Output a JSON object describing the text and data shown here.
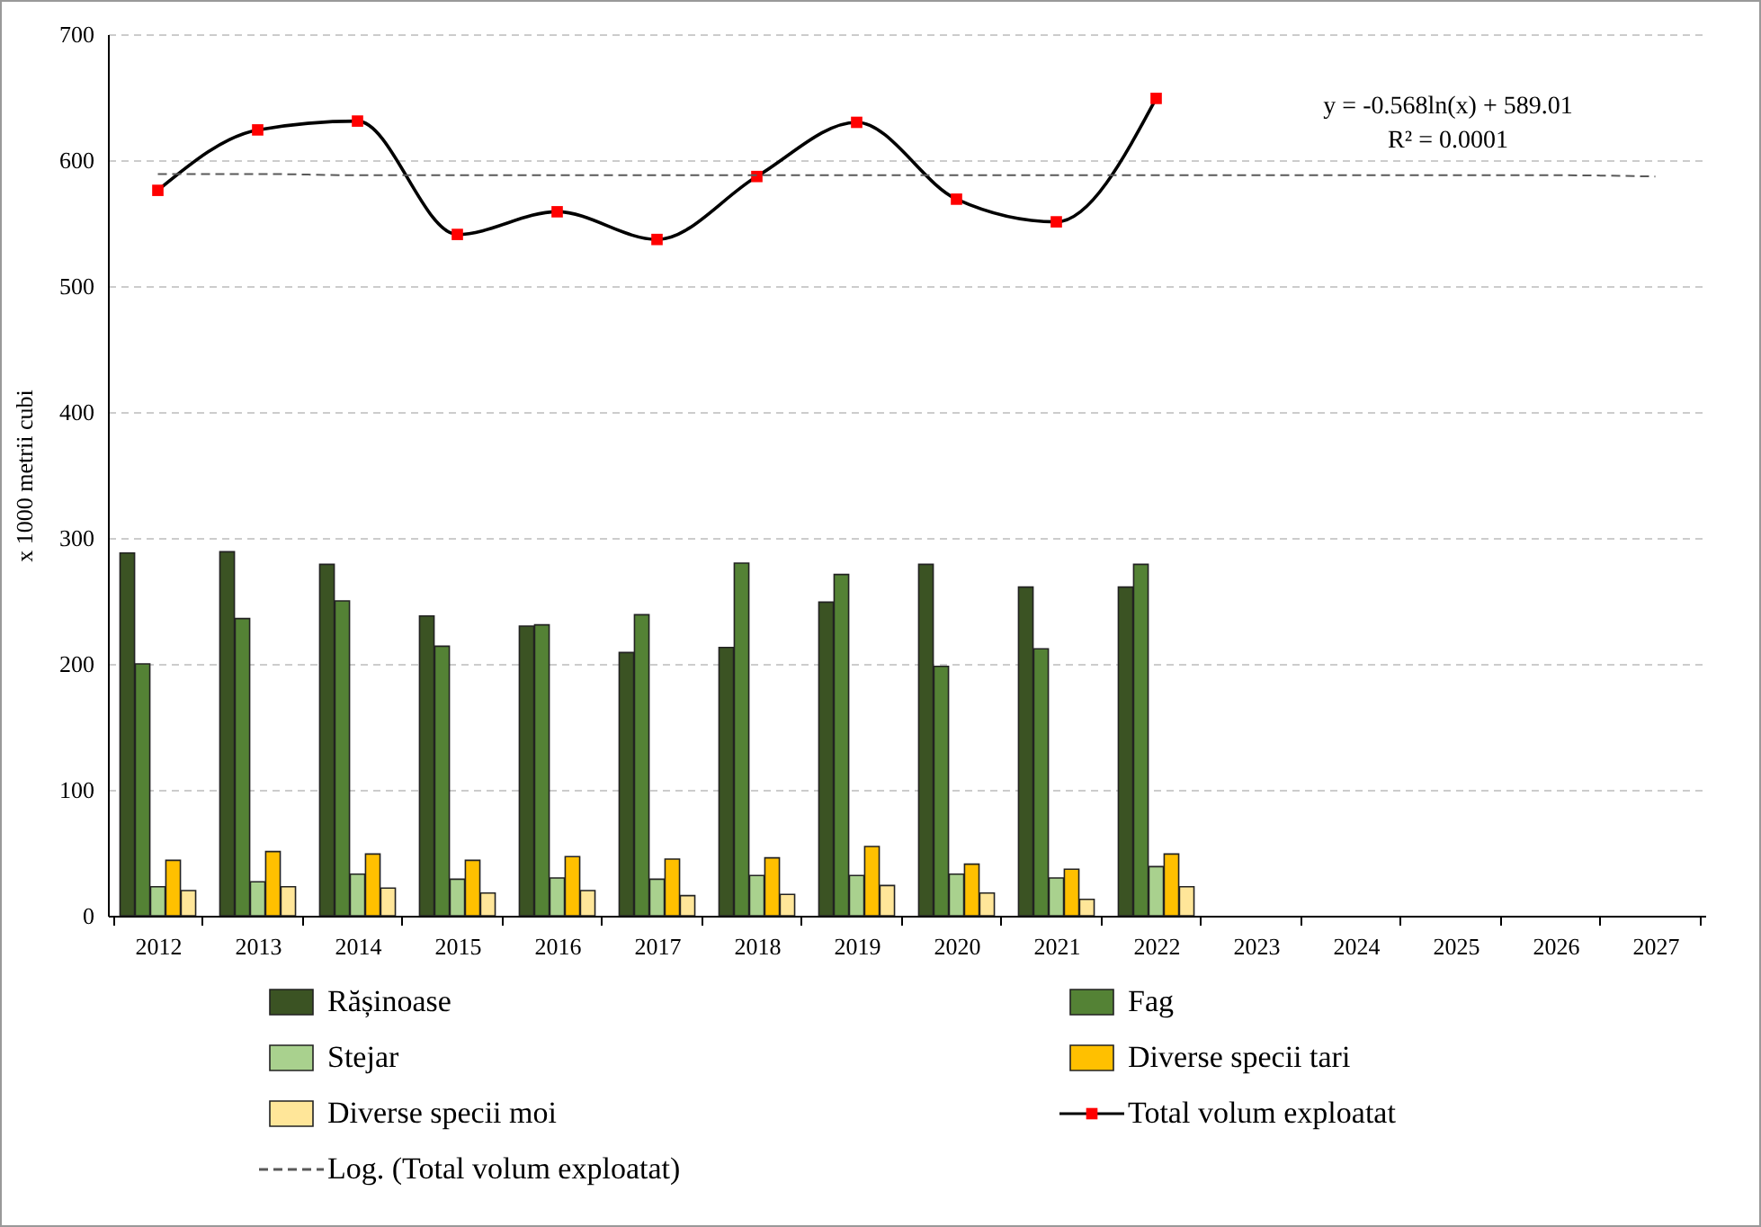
{
  "chart_data": {
    "type": "bar",
    "categories": [
      "2012",
      "2013",
      "2014",
      "2015",
      "2016",
      "2017",
      "2018",
      "2019",
      "2020",
      "2021",
      "2022",
      "2023",
      "2024",
      "2025",
      "2026",
      "2027"
    ],
    "ylabel": "x 1000 metrii cubi",
    "ylim": [
      0,
      700
    ],
    "yticks": [
      0,
      100,
      200,
      300,
      400,
      500,
      600,
      700
    ],
    "grid": "y",
    "legend": "bottom",
    "annotations": [
      "y = -0.568ln(x)  + 589.01",
      "R² = 0.0001"
    ],
    "series": [
      {
        "name": "Rășinoase",
        "color": "#3b5323",
        "values": [
          288,
          289,
          279,
          238,
          230,
          209,
          213,
          249,
          279,
          261,
          261,
          null,
          null,
          null,
          null,
          null
        ]
      },
      {
        "name": "Fag",
        "color": "#548235",
        "values": [
          200,
          236,
          250,
          214,
          231,
          239,
          280,
          271,
          198,
          212,
          279,
          null,
          null,
          null,
          null,
          null
        ]
      },
      {
        "name": "Stejar",
        "color": "#a9d18e",
        "values": [
          23,
          27,
          33,
          29,
          30,
          29,
          32,
          32,
          33,
          30,
          39,
          null,
          null,
          null,
          null,
          null
        ]
      },
      {
        "name": "Diverse specii tari",
        "color": "#ffc000",
        "values": [
          44,
          51,
          49,
          44,
          47,
          45,
          46,
          55,
          41,
          37,
          49,
          null,
          null,
          null,
          null,
          null
        ]
      },
      {
        "name": "Diverse specii moi",
        "color": "#ffe699",
        "values": [
          20,
          23,
          22,
          18,
          20,
          16,
          17,
          24,
          18,
          13,
          23,
          null,
          null,
          null,
          null,
          null
        ]
      },
      {
        "name": "Total volum exploatat",
        "type": "line",
        "color": "#000000",
        "marker": "square",
        "colors": [
          "#ff0000",
          "#ff0000",
          "#ff0000",
          "#ff0000",
          "#ff0000",
          "#ff0000",
          "#ff0000",
          "#ff0000",
          "#ff0000",
          "#ff0000",
          "#ff0000",
          null,
          null,
          null,
          null,
          null
        ],
        "values": [
          576,
          624,
          631,
          541,
          559,
          537,
          587,
          630,
          569,
          551,
          649,
          null,
          null,
          null,
          null,
          null
        ]
      },
      {
        "name": "Log. (Total volum exploatat)",
        "type": "line",
        "color": "#595959",
        "line_style": "dashed",
        "values": [
          589,
          589,
          588,
          588,
          588,
          588,
          588,
          588,
          588,
          588,
          588,
          588,
          588,
          588,
          588,
          587
        ]
      }
    ]
  }
}
